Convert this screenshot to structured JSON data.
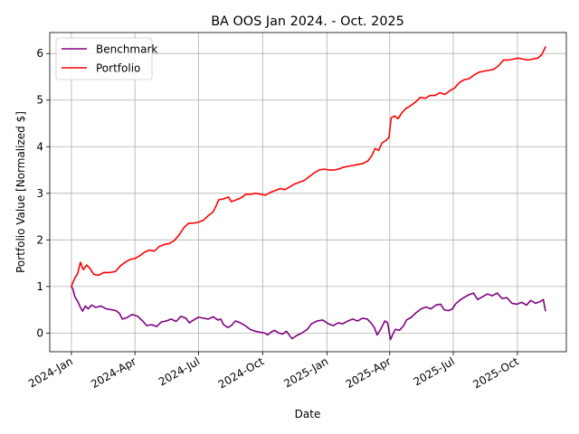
{
  "chart_data": {
    "type": "line",
    "title": "BA OOS Jan 2024. - Oct. 2025",
    "xlabel": "Date",
    "ylabel": "Portfolio Value [Normalized $]",
    "x_range": [
      "2023-12-01",
      "2025-12-10"
    ],
    "ylim": [
      -0.4,
      6.45
    ],
    "grid": true,
    "legend_position": "upper-left",
    "x_ticks": [
      {
        "date": "2024-01-01",
        "label": "2024-Jan"
      },
      {
        "date": "2024-04-01",
        "label": "2024-Apr"
      },
      {
        "date": "2024-07-01",
        "label": "2024-Jul"
      },
      {
        "date": "2024-10-01",
        "label": "2024-Oct"
      },
      {
        "date": "2025-01-01",
        "label": "2025-Jan"
      },
      {
        "date": "2025-04-01",
        "label": "2025-Apr"
      },
      {
        "date": "2025-07-01",
        "label": "2025-Jul"
      },
      {
        "date": "2025-10-01",
        "label": "2025-Oct"
      }
    ],
    "y_ticks": [
      0,
      1,
      2,
      3,
      4,
      5,
      6
    ],
    "series": [
      {
        "name": "Benchmark",
        "color": "#800080",
        "points": [
          [
            "2024-01-01",
            1.0
          ],
          [
            "2024-01-03",
            0.95
          ],
          [
            "2024-01-06",
            0.78
          ],
          [
            "2024-01-10",
            0.68
          ],
          [
            "2024-01-14",
            0.55
          ],
          [
            "2024-01-17",
            0.47
          ],
          [
            "2024-01-21",
            0.58
          ],
          [
            "2024-01-25",
            0.52
          ],
          [
            "2024-01-30",
            0.6
          ],
          [
            "2024-02-05",
            0.55
          ],
          [
            "2024-02-12",
            0.58
          ],
          [
            "2024-02-20",
            0.52
          ],
          [
            "2024-02-28",
            0.5
          ],
          [
            "2024-03-05",
            0.48
          ],
          [
            "2024-03-10",
            0.42
          ],
          [
            "2024-03-14",
            0.3
          ],
          [
            "2024-03-20",
            0.33
          ],
          [
            "2024-03-28",
            0.4
          ],
          [
            "2024-04-05",
            0.36
          ],
          [
            "2024-04-12",
            0.26
          ],
          [
            "2024-04-18",
            0.16
          ],
          [
            "2024-04-25",
            0.18
          ],
          [
            "2024-05-02",
            0.14
          ],
          [
            "2024-05-09",
            0.24
          ],
          [
            "2024-05-16",
            0.26
          ],
          [
            "2024-05-23",
            0.3
          ],
          [
            "2024-05-30",
            0.25
          ],
          [
            "2024-06-06",
            0.36
          ],
          [
            "2024-06-13",
            0.32
          ],
          [
            "2024-06-18",
            0.22
          ],
          [
            "2024-06-24",
            0.28
          ],
          [
            "2024-07-01",
            0.34
          ],
          [
            "2024-07-08",
            0.32
          ],
          [
            "2024-07-15",
            0.3
          ],
          [
            "2024-07-22",
            0.35
          ],
          [
            "2024-07-29",
            0.28
          ],
          [
            "2024-08-02",
            0.3
          ],
          [
            "2024-08-06",
            0.18
          ],
          [
            "2024-08-12",
            0.12
          ],
          [
            "2024-08-17",
            0.16
          ],
          [
            "2024-08-23",
            0.26
          ],
          [
            "2024-08-30",
            0.22
          ],
          [
            "2024-09-06",
            0.16
          ],
          [
            "2024-09-13",
            0.08
          ],
          [
            "2024-09-20",
            0.04
          ],
          [
            "2024-09-27",
            0.02
          ],
          [
            "2024-10-04",
            0.0
          ],
          [
            "2024-10-08",
            -0.04
          ],
          [
            "2024-10-13",
            0.02
          ],
          [
            "2024-10-18",
            0.06
          ],
          [
            "2024-10-24",
            0.0
          ],
          [
            "2024-10-30",
            -0.02
          ],
          [
            "2024-11-04",
            0.04
          ],
          [
            "2024-11-08",
            -0.04
          ],
          [
            "2024-11-12",
            -0.12
          ],
          [
            "2024-11-18",
            -0.06
          ],
          [
            "2024-11-26",
            0.0
          ],
          [
            "2024-12-04",
            0.08
          ],
          [
            "2024-12-10",
            0.2
          ],
          [
            "2024-12-18",
            0.26
          ],
          [
            "2024-12-26",
            0.28
          ],
          [
            "2025-01-03",
            0.2
          ],
          [
            "2025-01-10",
            0.16
          ],
          [
            "2025-01-17",
            0.22
          ],
          [
            "2025-01-24",
            0.2
          ],
          [
            "2025-01-31",
            0.26
          ],
          [
            "2025-02-07",
            0.3
          ],
          [
            "2025-02-14",
            0.26
          ],
          [
            "2025-02-21",
            0.32
          ],
          [
            "2025-02-28",
            0.3
          ],
          [
            "2025-03-05",
            0.22
          ],
          [
            "2025-03-10",
            0.12
          ],
          [
            "2025-03-14",
            -0.04
          ],
          [
            "2025-03-19",
            0.08
          ],
          [
            "2025-03-25",
            0.26
          ],
          [
            "2025-03-29",
            0.22
          ],
          [
            "2025-04-02",
            -0.14
          ],
          [
            "2025-04-05",
            -0.04
          ],
          [
            "2025-04-09",
            0.08
          ],
          [
            "2025-04-15",
            0.06
          ],
          [
            "2025-04-21",
            0.16
          ],
          [
            "2025-04-25",
            0.28
          ],
          [
            "2025-05-02",
            0.34
          ],
          [
            "2025-05-09",
            0.44
          ],
          [
            "2025-05-16",
            0.52
          ],
          [
            "2025-05-23",
            0.56
          ],
          [
            "2025-05-30",
            0.52
          ],
          [
            "2025-06-06",
            0.6
          ],
          [
            "2025-06-13",
            0.62
          ],
          [
            "2025-06-18",
            0.5
          ],
          [
            "2025-06-24",
            0.48
          ],
          [
            "2025-06-30",
            0.52
          ],
          [
            "2025-07-04",
            0.62
          ],
          [
            "2025-07-10",
            0.7
          ],
          [
            "2025-07-16",
            0.76
          ],
          [
            "2025-07-23",
            0.82
          ],
          [
            "2025-07-30",
            0.86
          ],
          [
            "2025-08-05",
            0.72
          ],
          [
            "2025-08-12",
            0.78
          ],
          [
            "2025-08-19",
            0.84
          ],
          [
            "2025-08-26",
            0.8
          ],
          [
            "2025-09-02",
            0.86
          ],
          [
            "2025-09-09",
            0.74
          ],
          [
            "2025-09-16",
            0.76
          ],
          [
            "2025-09-23",
            0.64
          ],
          [
            "2025-09-30",
            0.62
          ],
          [
            "2025-10-07",
            0.66
          ],
          [
            "2025-10-14",
            0.6
          ],
          [
            "2025-10-20",
            0.7
          ],
          [
            "2025-10-27",
            0.64
          ],
          [
            "2025-11-03",
            0.68
          ],
          [
            "2025-11-07",
            0.72
          ],
          [
            "2025-11-10",
            0.48
          ]
        ]
      },
      {
        "name": "Portfolio",
        "color": "#ff0000",
        "points": [
          [
            "2024-01-01",
            1.0
          ],
          [
            "2024-01-03",
            1.08
          ],
          [
            "2024-01-06",
            1.18
          ],
          [
            "2024-01-10",
            1.28
          ],
          [
            "2024-01-14",
            1.52
          ],
          [
            "2024-01-18",
            1.36
          ],
          [
            "2024-01-23",
            1.46
          ],
          [
            "2024-01-28",
            1.38
          ],
          [
            "2024-02-02",
            1.26
          ],
          [
            "2024-02-09",
            1.24
          ],
          [
            "2024-02-16",
            1.3
          ],
          [
            "2024-02-25",
            1.3
          ],
          [
            "2024-03-04",
            1.32
          ],
          [
            "2024-03-11",
            1.44
          ],
          [
            "2024-03-18",
            1.52
          ],
          [
            "2024-03-25",
            1.58
          ],
          [
            "2024-04-01",
            1.6
          ],
          [
            "2024-04-08",
            1.66
          ],
          [
            "2024-04-15",
            1.74
          ],
          [
            "2024-04-22",
            1.78
          ],
          [
            "2024-04-29",
            1.76
          ],
          [
            "2024-05-06",
            1.86
          ],
          [
            "2024-05-13",
            1.9
          ],
          [
            "2024-05-20",
            1.92
          ],
          [
            "2024-05-27",
            1.98
          ],
          [
            "2024-06-03",
            2.1
          ],
          [
            "2024-06-10",
            2.26
          ],
          [
            "2024-06-17",
            2.36
          ],
          [
            "2024-06-24",
            2.36
          ],
          [
            "2024-07-01",
            2.38
          ],
          [
            "2024-07-08",
            2.42
          ],
          [
            "2024-07-15",
            2.52
          ],
          [
            "2024-07-22",
            2.6
          ],
          [
            "2024-07-26",
            2.72
          ],
          [
            "2024-07-30",
            2.86
          ],
          [
            "2024-08-06",
            2.88
          ],
          [
            "2024-08-13",
            2.92
          ],
          [
            "2024-08-17",
            2.82
          ],
          [
            "2024-08-24",
            2.86
          ],
          [
            "2024-08-31",
            2.9
          ],
          [
            "2024-09-07",
            2.98
          ],
          [
            "2024-09-14",
            2.98
          ],
          [
            "2024-09-21",
            3.0
          ],
          [
            "2024-09-28",
            2.98
          ],
          [
            "2024-10-05",
            2.96
          ],
          [
            "2024-10-12",
            3.02
          ],
          [
            "2024-10-19",
            3.06
          ],
          [
            "2024-10-26",
            3.1
          ],
          [
            "2024-11-02",
            3.08
          ],
          [
            "2024-11-09",
            3.14
          ],
          [
            "2024-11-16",
            3.2
          ],
          [
            "2024-11-23",
            3.24
          ],
          [
            "2024-11-30",
            3.28
          ],
          [
            "2024-12-07",
            3.36
          ],
          [
            "2024-12-14",
            3.44
          ],
          [
            "2024-12-21",
            3.5
          ],
          [
            "2024-12-28",
            3.52
          ],
          [
            "2025-01-04",
            3.5
          ],
          [
            "2025-01-11",
            3.5
          ],
          [
            "2025-01-18",
            3.52
          ],
          [
            "2025-01-25",
            3.56
          ],
          [
            "2025-02-01",
            3.58
          ],
          [
            "2025-02-08",
            3.6
          ],
          [
            "2025-02-15",
            3.62
          ],
          [
            "2025-02-22",
            3.64
          ],
          [
            "2025-03-01",
            3.7
          ],
          [
            "2025-03-06",
            3.8
          ],
          [
            "2025-03-11",
            3.96
          ],
          [
            "2025-03-16",
            3.92
          ],
          [
            "2025-03-21",
            4.08
          ],
          [
            "2025-03-27",
            4.14
          ],
          [
            "2025-03-31",
            4.2
          ],
          [
            "2025-04-03",
            4.62
          ],
          [
            "2025-04-08",
            4.66
          ],
          [
            "2025-04-13",
            4.6
          ],
          [
            "2025-04-18",
            4.72
          ],
          [
            "2025-04-24",
            4.82
          ],
          [
            "2025-05-01",
            4.88
          ],
          [
            "2025-05-08",
            4.96
          ],
          [
            "2025-05-15",
            5.06
          ],
          [
            "2025-05-22",
            5.04
          ],
          [
            "2025-05-29",
            5.1
          ],
          [
            "2025-06-05",
            5.1
          ],
          [
            "2025-06-12",
            5.16
          ],
          [
            "2025-06-19",
            5.12
          ],
          [
            "2025-06-26",
            5.2
          ],
          [
            "2025-07-03",
            5.26
          ],
          [
            "2025-07-10",
            5.38
          ],
          [
            "2025-07-17",
            5.44
          ],
          [
            "2025-07-24",
            5.46
          ],
          [
            "2025-07-31",
            5.54
          ],
          [
            "2025-08-07",
            5.6
          ],
          [
            "2025-08-14",
            5.62
          ],
          [
            "2025-08-21",
            5.64
          ],
          [
            "2025-08-28",
            5.66
          ],
          [
            "2025-09-04",
            5.74
          ],
          [
            "2025-09-11",
            5.86
          ],
          [
            "2025-09-18",
            5.86
          ],
          [
            "2025-09-25",
            5.88
          ],
          [
            "2025-10-02",
            5.9
          ],
          [
            "2025-10-09",
            5.88
          ],
          [
            "2025-10-16",
            5.86
          ],
          [
            "2025-10-23",
            5.88
          ],
          [
            "2025-10-30",
            5.9
          ],
          [
            "2025-11-05",
            5.98
          ],
          [
            "2025-11-10",
            6.14
          ]
        ]
      }
    ]
  }
}
